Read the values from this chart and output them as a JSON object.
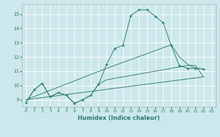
{
  "xlabel": "Humidex (Indice chaleur)",
  "bg_color": "#cde8ec",
  "grid_color": "#ffffff",
  "line_color": "#2e7d6e",
  "xlim": [
    -0.5,
    23.5
  ],
  "ylim": [
    8.5,
    15.7
  ],
  "xticks": [
    0,
    1,
    2,
    3,
    4,
    5,
    6,
    7,
    8,
    9,
    10,
    11,
    12,
    13,
    14,
    15,
    16,
    17,
    18,
    19,
    20,
    21,
    22,
    23
  ],
  "yticks": [
    9,
    10,
    11,
    12,
    13,
    14,
    15
  ],
  "series": [
    {
      "x": [
        0,
        1,
        2,
        3,
        4,
        5,
        6,
        7,
        8,
        9,
        10,
        11,
        12,
        13,
        14,
        15,
        16,
        17,
        18,
        19,
        20,
        21,
        22
      ],
      "y": [
        8.8,
        9.7,
        10.15,
        9.2,
        9.5,
        9.3,
        8.75,
        9.0,
        9.3,
        10.1,
        10.4,
        10.5,
        10.6,
        10.7,
        10.8,
        10.9,
        11.0,
        11.1,
        11.2,
        11.3,
        11.4,
        11.4,
        10.6
      ]
    },
    {
      "x": [
        0,
        1,
        2,
        3,
        4,
        5,
        6,
        7,
        8,
        9,
        10,
        11,
        12,
        13,
        14,
        15,
        16,
        17,
        18,
        19,
        20,
        21,
        22
      ],
      "y": [
        8.8,
        9.7,
        10.15,
        9.2,
        9.5,
        9.3,
        8.75,
        9.0,
        9.3,
        10.1,
        11.5,
        12.6,
        12.8,
        14.9,
        15.3,
        15.3,
        14.85,
        14.4,
        12.8,
        11.4,
        11.2,
        11.2,
        11.15
      ]
    },
    {
      "x": [
        0,
        10,
        18,
        19,
        20,
        21,
        22
      ],
      "y": [
        9.0,
        11.2,
        12.85,
        12.0,
        11.5,
        11.2,
        11.15
      ]
    },
    {
      "x": [
        0,
        22
      ],
      "y": [
        9.0,
        10.6
      ]
    }
  ]
}
